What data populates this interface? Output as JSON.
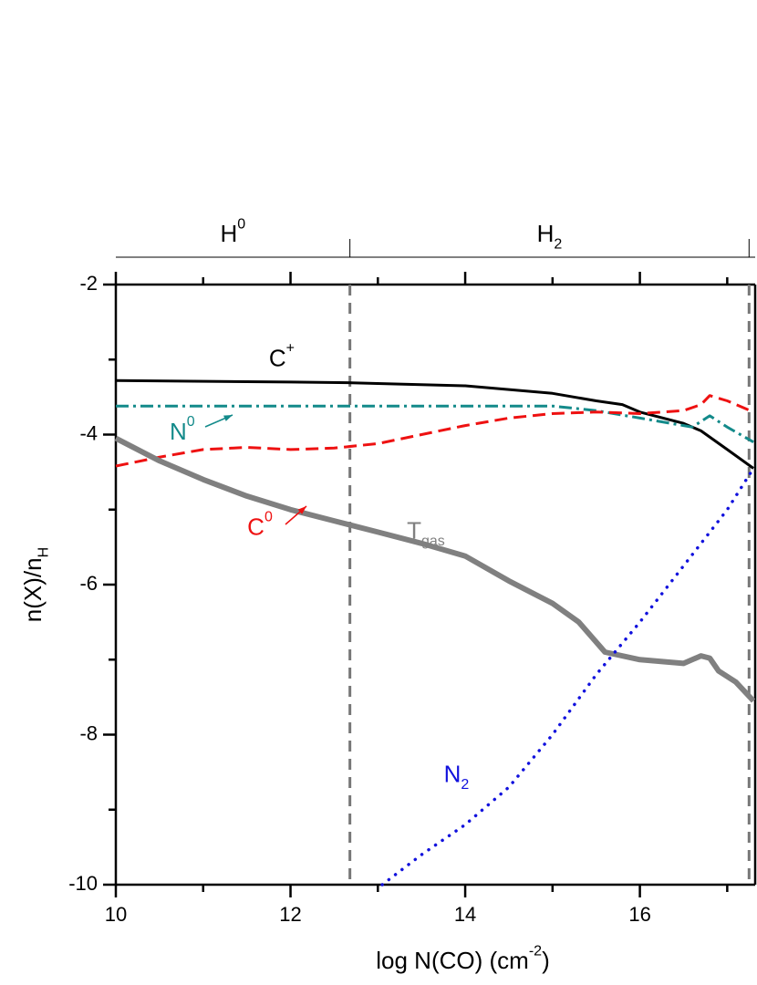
{
  "chart_data": {
    "type": "line",
    "xlabel": {
      "base": "log N(CO) (cm",
      "sup": "-2",
      "tail": ")"
    },
    "ylabel": {
      "base": "n(X)/n",
      "sub": "H"
    },
    "xlim": [
      10,
      17.32
    ],
    "ylim": [
      -10,
      -2
    ],
    "xticks": [
      10,
      12,
      14,
      16
    ],
    "xminor": [
      11,
      13,
      15,
      17
    ],
    "yticks": [
      -10,
      -8,
      -6,
      -4,
      -2
    ],
    "yminor": [
      -9,
      -7,
      -5,
      -3
    ],
    "boundaries": [
      12.68,
      17.25
    ],
    "regions": [
      {
        "label": {
          "base": "H",
          "sup": "0"
        },
        "from": 10,
        "to": 12.68
      },
      {
        "label": {
          "base": "H",
          "sub": "2"
        },
        "from": 12.68,
        "to": 17.25
      }
    ],
    "series": [
      {
        "label": {
          "base": "C",
          "sup": "+"
        },
        "color": "#000000",
        "style": "solid",
        "label_at": [
          11.9,
          -3.0
        ],
        "x": [
          10,
          12,
          12.7,
          14,
          15,
          15.5,
          15.8,
          16,
          16.5,
          16.7,
          17,
          17.3
        ],
        "values": [
          -3.28,
          -3.3,
          -3.31,
          -3.35,
          -3.45,
          -3.55,
          -3.6,
          -3.7,
          -3.85,
          -3.95,
          -4.2,
          -4.45
        ]
      },
      {
        "label": {
          "base": "N",
          "sup": "0"
        },
        "color": "#138a8a",
        "style": "dashdot",
        "label_at": [
          10.76,
          -3.98
        ],
        "x": [
          10,
          12,
          14,
          15,
          15.5,
          16,
          16.5,
          16.6,
          16.8,
          17,
          17.3
        ],
        "values": [
          -3.62,
          -3.62,
          -3.62,
          -3.62,
          -3.68,
          -3.78,
          -3.88,
          -3.9,
          -3.75,
          -3.9,
          -4.1
        ]
      },
      {
        "label": {
          "base": "C",
          "sup": "0"
        },
        "color": "#ee1111",
        "style": "dashed",
        "label_at": [
          11.65,
          -5.25
        ],
        "x": [
          10,
          10.5,
          11,
          11.5,
          12,
          12.5,
          13,
          13.5,
          14,
          14.5,
          15,
          15.5,
          16,
          16.5,
          16.7,
          16.8,
          17,
          17.3
        ],
        "values": [
          -4.42,
          -4.3,
          -4.2,
          -4.17,
          -4.2,
          -4.18,
          -4.12,
          -4.0,
          -3.88,
          -3.78,
          -3.72,
          -3.7,
          -3.72,
          -3.68,
          -3.6,
          -3.48,
          -3.55,
          -3.7
        ]
      },
      {
        "label": {
          "base": "T",
          "sub": "gas"
        },
        "color": "#808080",
        "style": "thick",
        "label_at": [
          13.55,
          -5.3
        ],
        "x": [
          10,
          10.5,
          11,
          11.5,
          12,
          12.5,
          13,
          13.5,
          14,
          14.5,
          15,
          15.3,
          15.6,
          16,
          16.5,
          16.7,
          16.8,
          16.9,
          17.1,
          17.3
        ],
        "values": [
          -4.05,
          -4.35,
          -4.6,
          -4.82,
          -5.0,
          -5.15,
          -5.3,
          -5.45,
          -5.62,
          -5.95,
          -6.25,
          -6.5,
          -6.9,
          -7.0,
          -7.05,
          -6.95,
          -6.98,
          -7.15,
          -7.3,
          -7.55
        ]
      },
      {
        "label": {
          "base": "N",
          "sub": "2"
        },
        "color": "#1111dd",
        "style": "dotted",
        "label_at": [
          13.9,
          -8.55
        ],
        "x": [
          13.05,
          13.5,
          14,
          14.5,
          15,
          15.5,
          16,
          16.5,
          17,
          17.3
        ],
        "values": [
          -10,
          -9.6,
          -9.2,
          -8.7,
          -8.0,
          -7.2,
          -6.5,
          -5.75,
          -5.0,
          -4.45
        ]
      }
    ]
  }
}
